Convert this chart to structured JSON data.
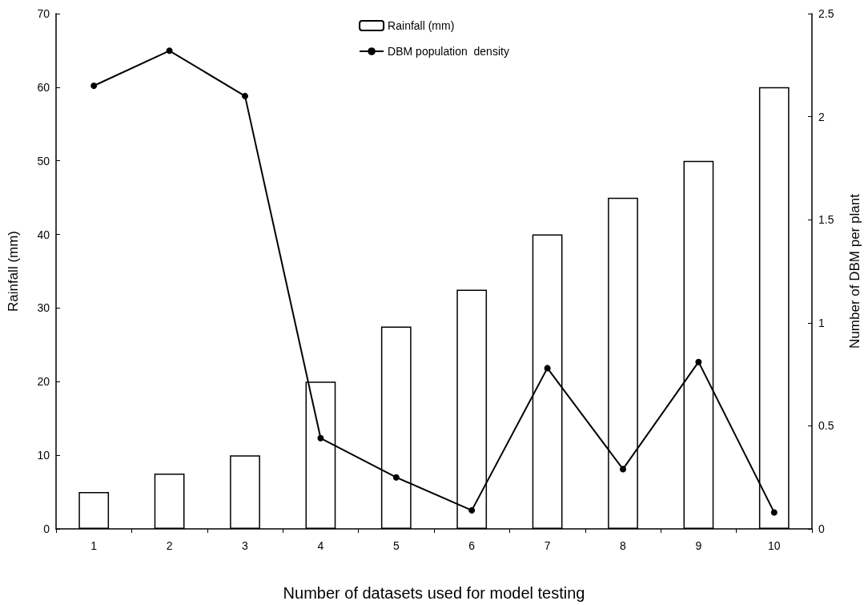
{
  "chart_data": {
    "type": "bar",
    "xlabel": "Number of datasets used for model testing",
    "ylabel": "Rainfall (mm)",
    "y2label": "Number of DBM per plant",
    "categories": [
      "1",
      "2",
      "3",
      "4",
      "5",
      "6",
      "7",
      "8",
      "9",
      "10"
    ],
    "series": [
      {
        "name": "Rainfall (mm)",
        "color": "#ffffff",
        "values": [
          5,
          7.5,
          10,
          20,
          27.5,
          32.5,
          40,
          45,
          50,
          60
        ]
      },
      {
        "name": "DBM population  density",
        "type": "line",
        "axis": "y2",
        "color": "#000000",
        "marker": "circle",
        "values": [
          2.15,
          2.32,
          2.1,
          0.44,
          0.25,
          0.09,
          0.78,
          0.29,
          0.81,
          0.08
        ]
      }
    ],
    "ylim": [
      0,
      70
    ],
    "yticks": [
      0,
      10,
      20,
      30,
      40,
      50,
      60,
      70
    ],
    "y2lim": [
      0,
      2.5
    ],
    "y2ticks": [
      0,
      0.5,
      1,
      1.5,
      2,
      2.5
    ],
    "grid": false,
    "legend": "top"
  }
}
